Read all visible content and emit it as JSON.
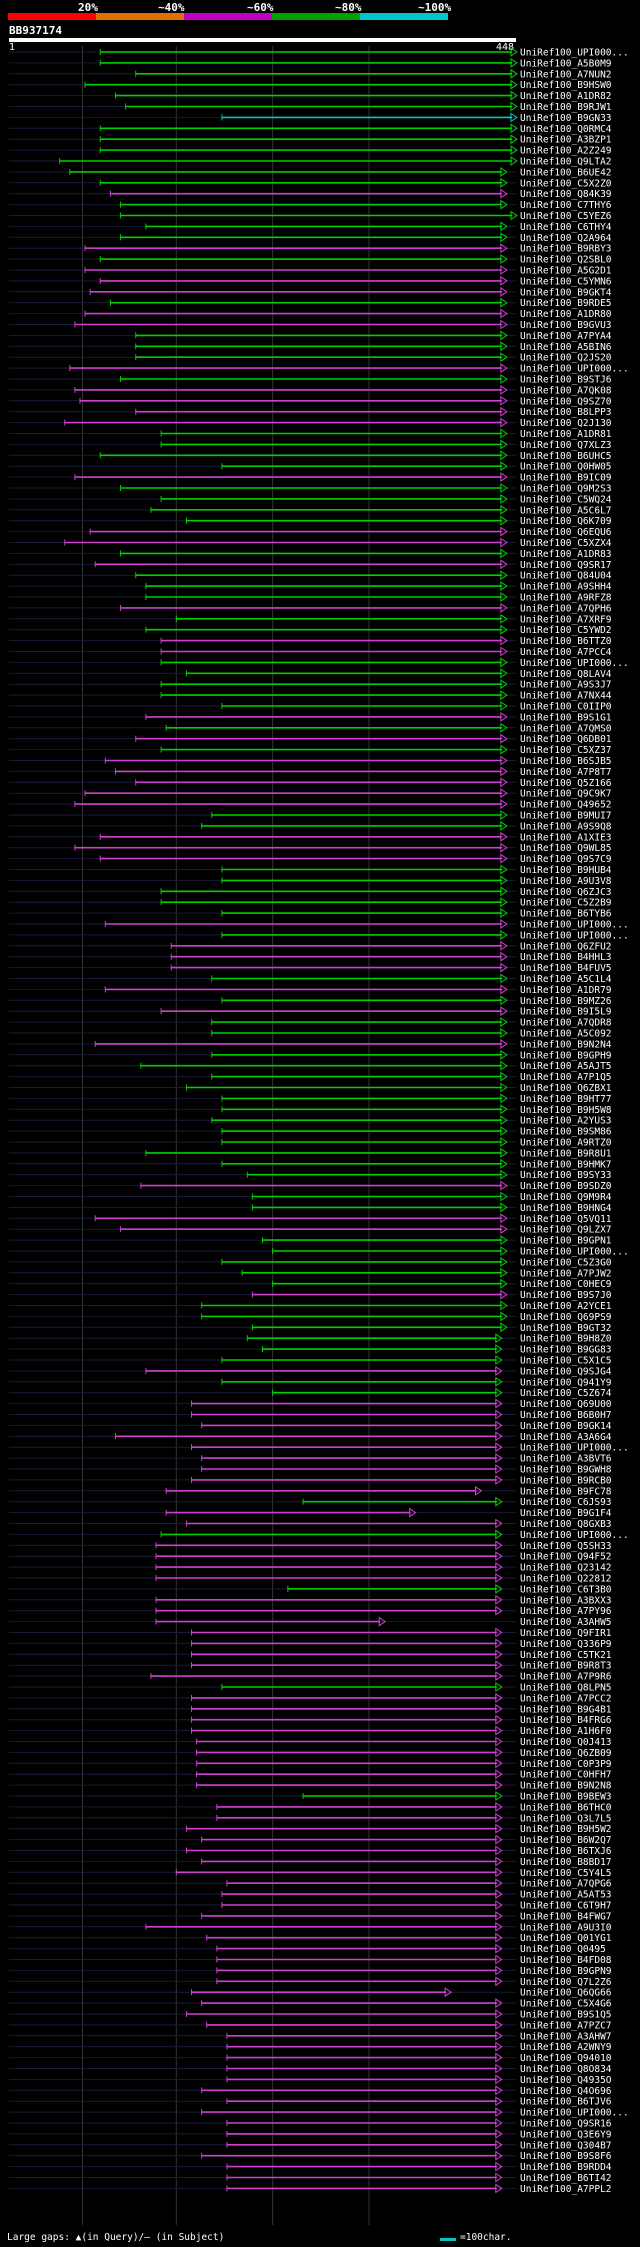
{
  "scale": {
    "labels": [
      "20%",
      "~40%",
      "~60%",
      "~80%",
      "~100%"
    ],
    "colors": [
      "#ff0000",
      "#e07000",
      "#c000c0",
      "#00a000",
      "#00c8c8"
    ]
  },
  "query": {
    "id": "BB937174",
    "start": "1",
    "end": "448"
  },
  "legend": {
    "gaps_text": "Large gaps: ▲(in Query)/– (in Subject)",
    "scale_text": "=100char."
  },
  "hits": [
    {
      "id": "UniRef100_UPI000...",
      "c": "g",
      "s": 0.18,
      "e": 1.0
    },
    {
      "id": "UniRef100_A5B0M9",
      "c": "g",
      "s": 0.18,
      "e": 1.0
    },
    {
      "id": "UniRef100_A7NUN2",
      "c": "g",
      "s": 0.25,
      "e": 1.0
    },
    {
      "id": "UniRef100_B9HSW0",
      "c": "g",
      "s": 0.15,
      "e": 1.0
    },
    {
      "id": "UniRef100_A1DR82",
      "c": "g",
      "s": 0.21,
      "e": 1.0
    },
    {
      "id": "UniRef100_B9RJW1",
      "c": "g",
      "s": 0.23,
      "e": 1.0
    },
    {
      "id": "UniRef100_B9GN33",
      "c": "c",
      "s": 0.42,
      "e": 1.0
    },
    {
      "id": "UniRef100_Q0RMC4",
      "c": "g",
      "s": 0.18,
      "e": 1.0
    },
    {
      "id": "UniRef100_A3BZP1",
      "c": "g",
      "s": 0.18,
      "e": 1.0
    },
    {
      "id": "UniRef100_A2Z249",
      "c": "g",
      "s": 0.18,
      "e": 1.0
    },
    {
      "id": "UniRef100_Q9LTA2",
      "c": "g",
      "s": 0.1,
      "e": 1.0
    },
    {
      "id": "UniRef100_B6UE42",
      "c": "g",
      "s": 0.12,
      "e": 0.98
    },
    {
      "id": "UniRef100_C5X2Z0",
      "c": "g",
      "s": 0.18,
      "e": 0.98
    },
    {
      "id": "UniRef100_Q84K39",
      "c": "m",
      "s": 0.2,
      "e": 0.98
    },
    {
      "id": "UniRef100_C7THY6",
      "c": "g",
      "s": 0.22,
      "e": 0.98
    },
    {
      "id": "UniRef100_C5YEZ6",
      "c": "g",
      "s": 0.22,
      "e": 1.0
    },
    {
      "id": "UniRef100_C6THY4",
      "c": "g",
      "s": 0.27,
      "e": 0.98
    },
    {
      "id": "UniRef100_Q2A964",
      "c": "g",
      "s": 0.22,
      "e": 0.98
    },
    {
      "id": "UniRef100_B9RBY3",
      "c": "m",
      "s": 0.15,
      "e": 0.98
    },
    {
      "id": "UniRef100_Q2SBL0",
      "c": "g",
      "s": 0.18,
      "e": 0.98
    },
    {
      "id": "UniRef100_A5G2D1",
      "c": "m",
      "s": 0.15,
      "e": 0.98
    },
    {
      "id": "UniRef100_C5YMN6",
      "c": "m",
      "s": 0.18,
      "e": 0.98
    },
    {
      "id": "UniRef100_B9GKT4",
      "c": "m",
      "s": 0.16,
      "e": 0.98
    },
    {
      "id": "UniRef100_B9RDE5",
      "c": "g",
      "s": 0.2,
      "e": 0.98
    },
    {
      "id": "UniRef100_A1DR80",
      "c": "m",
      "s": 0.15,
      "e": 0.98
    },
    {
      "id": "UniRef100_B9GVU3",
      "c": "m",
      "s": 0.13,
      "e": 0.98
    },
    {
      "id": "UniRef100_A7PYA4",
      "c": "g",
      "s": 0.25,
      "e": 0.98
    },
    {
      "id": "UniRef100_A5BIN6",
      "c": "g",
      "s": 0.25,
      "e": 0.98
    },
    {
      "id": "UniRef100_Q2JS20",
      "c": "g",
      "s": 0.25,
      "e": 0.98
    },
    {
      "id": "UniRef100_UPI000...",
      "c": "m",
      "s": 0.12,
      "e": 0.98
    },
    {
      "id": "UniRef100_B9STJ6",
      "c": "g",
      "s": 0.22,
      "e": 0.98
    },
    {
      "id": "UniRef100_A7QK08",
      "c": "m",
      "s": 0.13,
      "e": 0.98
    },
    {
      "id": "UniRef100_Q9SZ70",
      "c": "m",
      "s": 0.14,
      "e": 0.98
    },
    {
      "id": "UniRef100_B8LPP3",
      "c": "m",
      "s": 0.25,
      "e": 0.98
    },
    {
      "id": "UniRef100_Q2J130",
      "c": "m",
      "s": 0.11,
      "e": 0.98
    },
    {
      "id": "UniRef100_A1DR81",
      "c": "g",
      "s": 0.3,
      "e": 0.98
    },
    {
      "id": "UniRef100_Q7XLZ3",
      "c": "g",
      "s": 0.3,
      "e": 0.98
    },
    {
      "id": "UniRef100_B6UHC5",
      "c": "g",
      "s": 0.18,
      "e": 0.98
    },
    {
      "id": "UniRef100_Q0HW05",
      "c": "g",
      "s": 0.42,
      "e": 0.98
    },
    {
      "id": "UniRef100_B9IC09",
      "c": "m",
      "s": 0.13,
      "e": 0.98
    },
    {
      "id": "UniRef100_Q9M2S3",
      "c": "g",
      "s": 0.22,
      "e": 0.98
    },
    {
      "id": "UniRef100_C5WQ24",
      "c": "g",
      "s": 0.3,
      "e": 0.98
    },
    {
      "id": "UniRef100_A5C6L7",
      "c": "g",
      "s": 0.28,
      "e": 0.98
    },
    {
      "id": "UniRef100_Q6K709",
      "c": "g",
      "s": 0.35,
      "e": 0.98
    },
    {
      "id": "UniRef100_Q6EQU6",
      "c": "m",
      "s": 0.16,
      "e": 0.98
    },
    {
      "id": "UniRef100_C5XZX4",
      "c": "m",
      "s": 0.11,
      "e": 0.98
    },
    {
      "id": "UniRef100_A1DR83",
      "c": "g",
      "s": 0.22,
      "e": 0.98
    },
    {
      "id": "UniRef100_Q9SR17",
      "c": "m",
      "s": 0.17,
      "e": 0.98
    },
    {
      "id": "UniRef100_Q84U04",
      "c": "g",
      "s": 0.25,
      "e": 0.98
    },
    {
      "id": "UniRef100_A9SHH4",
      "c": "g",
      "s": 0.27,
      "e": 0.98
    },
    {
      "id": "UniRef100_A9RFZ8",
      "c": "g",
      "s": 0.27,
      "e": 0.98
    },
    {
      "id": "UniRef100_A7QPH6",
      "c": "m",
      "s": 0.22,
      "e": 0.98
    },
    {
      "id": "UniRef100_A7XRF9",
      "c": "g",
      "s": 0.33,
      "e": 0.98
    },
    {
      "id": "UniRef100_C5YWD2",
      "c": "g",
      "s": 0.27,
      "e": 0.98
    },
    {
      "id": "UniRef100_B6TTZ0",
      "c": "m",
      "s": 0.3,
      "e": 0.98
    },
    {
      "id": "UniRef100_A7PCC4",
      "c": "m",
      "s": 0.3,
      "e": 0.98
    },
    {
      "id": "UniRef100_UPI000...",
      "c": "g",
      "s": 0.3,
      "e": 0.98
    },
    {
      "id": "UniRef100_Q8LAV4",
      "c": "g",
      "s": 0.35,
      "e": 0.98
    },
    {
      "id": "UniRef100_A9S3J7",
      "c": "g",
      "s": 0.3,
      "e": 0.98
    },
    {
      "id": "UniRef100_A7NX44",
      "c": "g",
      "s": 0.3,
      "e": 0.98
    },
    {
      "id": "UniRef100_C0IIP0",
      "c": "g",
      "s": 0.42,
      "e": 0.98
    },
    {
      "id": "UniRef100_B9S1G1",
      "c": "m",
      "s": 0.27,
      "e": 0.98
    },
    {
      "id": "UniRef100_A7QMS0",
      "c": "g",
      "s": 0.31,
      "e": 0.98
    },
    {
      "id": "UniRef100_Q6DB01",
      "c": "m",
      "s": 0.25,
      "e": 0.98
    },
    {
      "id": "UniRef100_C5XZ37",
      "c": "g",
      "s": 0.3,
      "e": 0.98
    },
    {
      "id": "UniRef100_B6SJB5",
      "c": "m",
      "s": 0.19,
      "e": 0.98
    },
    {
      "id": "UniRef100_A7P8T7",
      "c": "m",
      "s": 0.21,
      "e": 0.98
    },
    {
      "id": "UniRef100_Q5Z166",
      "c": "m",
      "s": 0.25,
      "e": 0.98
    },
    {
      "id": "UniRef100_Q9C9K7",
      "c": "m",
      "s": 0.15,
      "e": 0.98
    },
    {
      "id": "UniRef100_Q49652",
      "c": "m",
      "s": 0.13,
      "e": 0.98
    },
    {
      "id": "UniRef100_B9MUI7",
      "c": "g",
      "s": 0.4,
      "e": 0.98
    },
    {
      "id": "UniRef100_A9S9Q8",
      "c": "g",
      "s": 0.38,
      "e": 0.98
    },
    {
      "id": "UniRef100_A1XIE3",
      "c": "m",
      "s": 0.18,
      "e": 0.98
    },
    {
      "id": "UniRef100_Q9WL85",
      "c": "m",
      "s": 0.13,
      "e": 0.98
    },
    {
      "id": "UniRef100_Q9S7C9",
      "c": "m",
      "s": 0.18,
      "e": 0.98
    },
    {
      "id": "UniRef100_B9HUB4",
      "c": "g",
      "s": 0.42,
      "e": 0.98
    },
    {
      "id": "UniRef100_A9U3V8",
      "c": "g",
      "s": 0.42,
      "e": 0.98
    },
    {
      "id": "UniRef100_Q6ZJC3",
      "c": "g",
      "s": 0.3,
      "e": 0.98
    },
    {
      "id": "UniRef100_C5Z2B9",
      "c": "g",
      "s": 0.3,
      "e": 0.98
    },
    {
      "id": "UniRef100_B6TYB6",
      "c": "g",
      "s": 0.42,
      "e": 0.98
    },
    {
      "id": "UniRef100_UPI000...",
      "c": "m",
      "s": 0.19,
      "e": 0.98
    },
    {
      "id": "UniRef100_UPI000...",
      "c": "g",
      "s": 0.42,
      "e": 0.98
    },
    {
      "id": "UniRef100_Q6ZFU2",
      "c": "m",
      "s": 0.32,
      "e": 0.98
    },
    {
      "id": "UniRef100_B4HHL3",
      "c": "m",
      "s": 0.32,
      "e": 0.98
    },
    {
      "id": "UniRef100_B4FUV5",
      "c": "m",
      "s": 0.32,
      "e": 0.98
    },
    {
      "id": "UniRef100_A5C1L4",
      "c": "g",
      "s": 0.4,
      "e": 0.98
    },
    {
      "id": "UniRef100_A1DR79",
      "c": "m",
      "s": 0.19,
      "e": 0.98
    },
    {
      "id": "UniRef100_B9MZ26",
      "c": "g",
      "s": 0.42,
      "e": 0.98
    },
    {
      "id": "UniRef100_B9I5L9",
      "c": "m",
      "s": 0.3,
      "e": 0.98
    },
    {
      "id": "UniRef100_A7QDR8",
      "c": "g",
      "s": 0.4,
      "e": 0.98
    },
    {
      "id": "UniRef100_A5C092",
      "c": "g",
      "s": 0.4,
      "e": 0.98
    },
    {
      "id": "UniRef100_B9N2N4",
      "c": "m",
      "s": 0.17,
      "e": 0.98
    },
    {
      "id": "UniRef100_B9GPH9",
      "c": "g",
      "s": 0.4,
      "e": 0.98
    },
    {
      "id": "UniRef100_A5AJT5",
      "c": "g",
      "s": 0.26,
      "e": 0.98
    },
    {
      "id": "UniRef100_A7P1Q5",
      "c": "g",
      "s": 0.4,
      "e": 0.98
    },
    {
      "id": "UniRef100_Q6ZBX1",
      "c": "g",
      "s": 0.35,
      "e": 0.98
    },
    {
      "id": "UniRef100_B9HT77",
      "c": "g",
      "s": 0.42,
      "e": 0.98
    },
    {
      "id": "UniRef100_B9H5W8",
      "c": "g",
      "s": 0.42,
      "e": 0.98
    },
    {
      "id": "UniRef100_A2YUS3",
      "c": "g",
      "s": 0.4,
      "e": 0.98
    },
    {
      "id": "UniRef100_B9SM86",
      "c": "g",
      "s": 0.42,
      "e": 0.98
    },
    {
      "id": "UniRef100_A9RTZ0",
      "c": "g",
      "s": 0.42,
      "e": 0.98
    },
    {
      "id": "UniRef100_B9R8U1",
      "c": "g",
      "s": 0.27,
      "e": 0.98
    },
    {
      "id": "UniRef100_B9HMK7",
      "c": "g",
      "s": 0.42,
      "e": 0.98
    },
    {
      "id": "UniRef100_B9SY33",
      "c": "g",
      "s": 0.47,
      "e": 0.98
    },
    {
      "id": "UniRef100_B9SDZ0",
      "c": "m",
      "s": 0.26,
      "e": 0.98
    },
    {
      "id": "UniRef100_Q9M9R4",
      "c": "g",
      "s": 0.48,
      "e": 0.98
    },
    {
      "id": "UniRef100_B9HNG4",
      "c": "g",
      "s": 0.48,
      "e": 0.98
    },
    {
      "id": "UniRef100_Q5VQ11",
      "c": "m",
      "s": 0.17,
      "e": 0.98
    },
    {
      "id": "UniRef100_Q9LZX7",
      "c": "m",
      "s": 0.22,
      "e": 0.98
    },
    {
      "id": "UniRef100_B9GPN1",
      "c": "g",
      "s": 0.5,
      "e": 0.98
    },
    {
      "id": "UniRef100_UPI000...",
      "c": "g",
      "s": 0.52,
      "e": 0.98
    },
    {
      "id": "UniRef100_C5Z3G0",
      "c": "g",
      "s": 0.42,
      "e": 0.98
    },
    {
      "id": "UniRef100_A7PJW2",
      "c": "g",
      "s": 0.46,
      "e": 0.98
    },
    {
      "id": "UniRef100_C0HEC9",
      "c": "g",
      "s": 0.52,
      "e": 0.98
    },
    {
      "id": "UniRef100_B9S7J0",
      "c": "m",
      "s": 0.48,
      "e": 0.98
    },
    {
      "id": "UniRef100_A2YCE1",
      "c": "g",
      "s": 0.38,
      "e": 0.98
    },
    {
      "id": "UniRef100_Q69PS9",
      "c": "g",
      "s": 0.38,
      "e": 0.98
    },
    {
      "id": "UniRef100_B9GT32",
      "c": "g",
      "s": 0.48,
      "e": 0.98
    },
    {
      "id": "UniRef100_B9H8Z0",
      "c": "g",
      "s": 0.47,
      "e": 0.97
    },
    {
      "id": "UniRef100_B9GG83",
      "c": "g",
      "s": 0.5,
      "e": 0.97
    },
    {
      "id": "UniRef100_C5X1C5",
      "c": "g",
      "s": 0.42,
      "e": 0.97
    },
    {
      "id": "UniRef100_Q9SJG4",
      "c": "m",
      "s": 0.27,
      "e": 0.97
    },
    {
      "id": "UniRef100_Q941Y9",
      "c": "g",
      "s": 0.42,
      "e": 0.97
    },
    {
      "id": "UniRef100_C5Z674",
      "c": "g",
      "s": 0.52,
      "e": 0.97
    },
    {
      "id": "UniRef100_Q69U00",
      "c": "m",
      "s": 0.36,
      "e": 0.97
    },
    {
      "id": "UniRef100_B6B0H7",
      "c": "m",
      "s": 0.36,
      "e": 0.97
    },
    {
      "id": "UniRef100_B9GK14",
      "c": "m",
      "s": 0.38,
      "e": 0.97
    },
    {
      "id": "UniRef100_A3A6G4",
      "c": "m",
      "s": 0.21,
      "e": 0.97
    },
    {
      "id": "UniRef100_UPI000...",
      "c": "m",
      "s": 0.36,
      "e": 0.97
    },
    {
      "id": "UniRef100_A3BVT6",
      "c": "m",
      "s": 0.38,
      "e": 0.97
    },
    {
      "id": "UniRef100_B9GWH8",
      "c": "m",
      "s": 0.38,
      "e": 0.97
    },
    {
      "id": "UniRef100_B9RCB0",
      "c": "m",
      "s": 0.36,
      "e": 0.97
    },
    {
      "id": "UniRef100_B9FC78",
      "c": "m",
      "s": 0.31,
      "e": 0.93
    },
    {
      "id": "UniRef100_C6JS93",
      "c": "g",
      "s": 0.58,
      "e": 0.97
    },
    {
      "id": "UniRef100_B9G1F4",
      "c": "m",
      "s": 0.31,
      "e": 0.8
    },
    {
      "id": "UniRef100_Q8GXB3",
      "c": "m",
      "s": 0.35,
      "e": 0.97
    },
    {
      "id": "UniRef100_UPI000...",
      "c": "g",
      "s": 0.3,
      "e": 0.97
    },
    {
      "id": "UniRef100_Q5SH33",
      "c": "m",
      "s": 0.29,
      "e": 0.97
    },
    {
      "id": "UniRef100_Q94F52",
      "c": "m",
      "s": 0.29,
      "e": 0.97
    },
    {
      "id": "UniRef100_Q23142",
      "c": "m",
      "s": 0.29,
      "e": 0.97
    },
    {
      "id": "UniRef100_Q22812",
      "c": "m",
      "s": 0.29,
      "e": 0.97
    },
    {
      "id": "UniRef100_C6T3B0",
      "c": "g",
      "s": 0.55,
      "e": 0.97
    },
    {
      "id": "UniRef100_A3BXX3",
      "c": "m",
      "s": 0.29,
      "e": 0.97
    },
    {
      "id": "UniRef100_A7PY96",
      "c": "m",
      "s": 0.29,
      "e": 0.97
    },
    {
      "id": "UniRef100_A3AHW5",
      "c": "m",
      "s": 0.29,
      "e": 0.74
    },
    {
      "id": "UniRef100_Q9FIR1",
      "c": "m",
      "s": 0.36,
      "e": 0.97
    },
    {
      "id": "UniRef100_Q336P9",
      "c": "m",
      "s": 0.36,
      "e": 0.97
    },
    {
      "id": "UniRef100_C5TK21",
      "c": "m",
      "s": 0.36,
      "e": 0.97
    },
    {
      "id": "UniRef100_B9R8T3",
      "c": "m",
      "s": 0.36,
      "e": 0.97
    },
    {
      "id": "UniRef100_A7P9R6",
      "c": "m",
      "s": 0.28,
      "e": 0.97
    },
    {
      "id": "UniRef100_Q8LPN5",
      "c": "g",
      "s": 0.42,
      "e": 0.97
    },
    {
      "id": "UniRef100_A7PCC2",
      "c": "m",
      "s": 0.36,
      "e": 0.97
    },
    {
      "id": "UniRef100_B9G4B1",
      "c": "m",
      "s": 0.36,
      "e": 0.97
    },
    {
      "id": "UniRef100_B4FRG6",
      "c": "m",
      "s": 0.36,
      "e": 0.97
    },
    {
      "id": "UniRef100_A1H6F0",
      "c": "m",
      "s": 0.36,
      "e": 0.97
    },
    {
      "id": "UniRef100_Q0J413",
      "c": "m",
      "s": 0.37,
      "e": 0.97
    },
    {
      "id": "UniRef100_Q6ZB09",
      "c": "m",
      "s": 0.37,
      "e": 0.97
    },
    {
      "id": "UniRef100_C0P3P9",
      "c": "m",
      "s": 0.37,
      "e": 0.97
    },
    {
      "id": "UniRef100_C0HFH7",
      "c": "m",
      "s": 0.37,
      "e": 0.97
    },
    {
      "id": "UniRef100_B9N2N8",
      "c": "m",
      "s": 0.37,
      "e": 0.97
    },
    {
      "id": "UniRef100_B9BEW3",
      "c": "g",
      "s": 0.58,
      "e": 0.97
    },
    {
      "id": "UniRef100_B6THC0",
      "c": "m",
      "s": 0.41,
      "e": 0.97
    },
    {
      "id": "UniRef100_Q3L7L5",
      "c": "m",
      "s": 0.41,
      "e": 0.97
    },
    {
      "id": "UniRef100_B9H5W2",
      "c": "m",
      "s": 0.35,
      "e": 0.97
    },
    {
      "id": "UniRef100_B6W2Q7",
      "c": "m",
      "s": 0.38,
      "e": 0.97
    },
    {
      "id": "UniRef100_B6TXJ6",
      "c": "m",
      "s": 0.35,
      "e": 0.97
    },
    {
      "id": "UniRef100_B8BD17",
      "c": "m",
      "s": 0.38,
      "e": 0.97
    },
    {
      "id": "UniRef100_C5Y4L5",
      "c": "m",
      "s": 0.33,
      "e": 0.97
    },
    {
      "id": "UniRef100_A7QPG6",
      "c": "m",
      "s": 0.43,
      "e": 0.97
    },
    {
      "id": "UniRef100_A5AT53",
      "c": "m",
      "s": 0.42,
      "e": 0.97
    },
    {
      "id": "UniRef100_C6T9H7",
      "c": "m",
      "s": 0.42,
      "e": 0.97
    },
    {
      "id": "UniRef100_B4FWG7",
      "c": "m",
      "s": 0.38,
      "e": 0.97
    },
    {
      "id": "UniRef100_A9U3I0",
      "c": "m",
      "s": 0.27,
      "e": 0.97
    },
    {
      "id": "UniRef100_Q01YG1",
      "c": "m",
      "s": 0.39,
      "e": 0.97
    },
    {
      "id": "UniRef100_Q0495",
      "c": "m",
      "s": 0.41,
      "e": 0.97
    },
    {
      "id": "UniRef100_B4FD08",
      "c": "m",
      "s": 0.41,
      "e": 0.97
    },
    {
      "id": "UniRef100_B9GPN9",
      "c": "m",
      "s": 0.41,
      "e": 0.97
    },
    {
      "id": "UniRef100_Q7L2Z6",
      "c": "m",
      "s": 0.41,
      "e": 0.97
    },
    {
      "id": "UniRef100_Q6QG66",
      "c": "m",
      "s": 0.36,
      "e": 0.87
    },
    {
      "id": "UniRef100_C5X4G6",
      "c": "m",
      "s": 0.38,
      "e": 0.97
    },
    {
      "id": "UniRef100_B9S1Q5",
      "c": "m",
      "s": 0.35,
      "e": 0.97
    },
    {
      "id": "UniRef100_A7PZC7",
      "c": "m",
      "s": 0.39,
      "e": 0.97
    },
    {
      "id": "UniRef100_A3AHW7",
      "c": "m",
      "s": 0.43,
      "e": 0.97
    },
    {
      "id": "UniRef100_A2WNY9",
      "c": "m",
      "s": 0.43,
      "e": 0.97
    },
    {
      "id": "UniRef100_Q94010",
      "c": "m",
      "s": 0.43,
      "e": 0.97
    },
    {
      "id": "UniRef100_Q8O834",
      "c": "m",
      "s": 0.43,
      "e": 0.97
    },
    {
      "id": "UniRef100_Q4935O",
      "c": "m",
      "s": 0.43,
      "e": 0.97
    },
    {
      "id": "UniRef100_Q4O696",
      "c": "m",
      "s": 0.38,
      "e": 0.97
    },
    {
      "id": "UniRef100_B6TJV6",
      "c": "m",
      "s": 0.43,
      "e": 0.97
    },
    {
      "id": "UniRef100_UPI000...",
      "c": "m",
      "s": 0.38,
      "e": 0.97
    },
    {
      "id": "UniRef100_Q9SR16",
      "c": "m",
      "s": 0.43,
      "e": 0.97
    },
    {
      "id": "UniRef100_Q3E6Y9",
      "c": "m",
      "s": 0.43,
      "e": 0.97
    },
    {
      "id": "UniRef100_Q304B7",
      "c": "m",
      "s": 0.43,
      "e": 0.97
    },
    {
      "id": "UniRef100_B9S8F6",
      "c": "m",
      "s": 0.38,
      "e": 0.97
    },
    {
      "id": "UniRef100_B9RDD4",
      "c": "m",
      "s": 0.43,
      "e": 0.97
    },
    {
      "id": "UniRef100_B6TI42",
      "c": "m",
      "s": 0.43,
      "e": 0.97
    },
    {
      "id": "UniRef100_A7PPL2",
      "c": "m",
      "s": 0.43,
      "e": 0.97
    }
  ]
}
